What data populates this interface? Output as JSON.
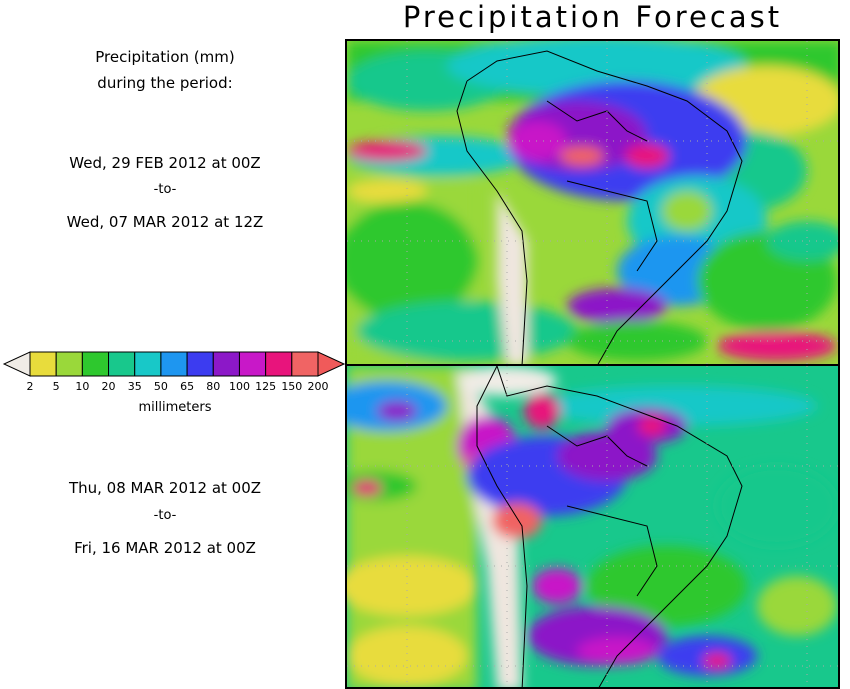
{
  "title": "Precipitation Forecast",
  "intro": {
    "line1": "Precipitation (mm)",
    "line2": "during the period:"
  },
  "period1": {
    "start": "Wed, 29 FEB 2012 at 00Z",
    "sep": "-to-",
    "end": "Wed, 07 MAR 2012 at 12Z"
  },
  "period2": {
    "start": "Thu, 08 MAR 2012 at 00Z",
    "sep": "-to-",
    "end": "Fri, 16 MAR 2012 at 00Z"
  },
  "legend": {
    "unit": "millimeters",
    "ticks": [
      "2",
      "5",
      "10",
      "20",
      "35",
      "50",
      "65",
      "80",
      "100",
      "125",
      "150",
      "200"
    ],
    "colors": [
      "#e8dc3c",
      "#9ad83a",
      "#2ec82e",
      "#18c88c",
      "#18c8c8",
      "#1e96f0",
      "#3c3cf0",
      "#8c18c8",
      "#c818c8",
      "#e8147c",
      "#f06464"
    ],
    "under_color": "#f0ece6",
    "over_color": "#f05a5a"
  },
  "palette": {
    "land_dry": "#efe6df",
    "border": "#000000"
  }
}
